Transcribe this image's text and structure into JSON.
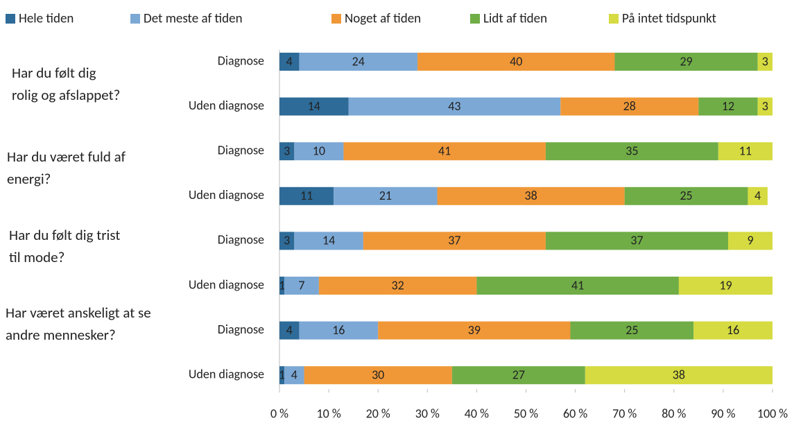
{
  "chart_data": {
    "type": "stacked_bar_horizontal",
    "categories": [
      "Diagnose",
      "Uden diagnose",
      "Diagnose",
      "Uden diagnose",
      "Diagnose",
      "Uden diagnose",
      "Diagnose",
      "Uden diagnose"
    ],
    "groups": [
      {
        "lines": [
          "Har du følt dig",
          "rolig og afslappet?"
        ]
      },
      {
        "lines": [
          "Har du været fuld af",
          "energi?"
        ]
      },
      {
        "lines": [
          "Har du følt dig trist",
          "til mode?"
        ]
      },
      {
        "lines": [
          "Har været anskeligt at se",
          "andre mennesker?"
        ]
      }
    ],
    "series": [
      {
        "name": "Hele tiden",
        "color": "#2e6b98",
        "values": [
          4,
          14,
          3,
          11,
          3,
          1,
          4,
          1
        ]
      },
      {
        "name": "Det meste af tiden",
        "color": "#7ca8d5",
        "values": [
          24,
          43,
          10,
          21,
          14,
          7,
          16,
          4
        ]
      },
      {
        "name": "Noget af tiden",
        "color": "#f09838",
        "values": [
          40,
          28,
          41,
          38,
          37,
          32,
          39,
          30
        ]
      },
      {
        "name": "Lidt af tiden",
        "color": "#70ad47",
        "values": [
          29,
          12,
          35,
          25,
          37,
          41,
          25,
          27
        ]
      },
      {
        "name": "På intet tidspunkt",
        "color": "#d5db40",
        "values": [
          3,
          3,
          11,
          4,
          9,
          19,
          16,
          38
        ]
      }
    ],
    "xlim": [
      0,
      100
    ],
    "xticks": [
      {
        "value": 0,
        "label": "0 %"
      },
      {
        "value": 10,
        "label": "10 %"
      },
      {
        "value": 20,
        "label": "20 %"
      },
      {
        "value": 30,
        "label": "30 %"
      },
      {
        "value": 40,
        "label": "40 %"
      },
      {
        "value": 50,
        "label": "50 %"
      },
      {
        "value": 60,
        "label": "60 %"
      },
      {
        "value": 70,
        "label": "70 %"
      },
      {
        "value": 80,
        "label": "80 %"
      },
      {
        "value": 90,
        "label": "90 %"
      },
      {
        "value": 100,
        "label": "100 %"
      }
    ],
    "legend": "top"
  }
}
